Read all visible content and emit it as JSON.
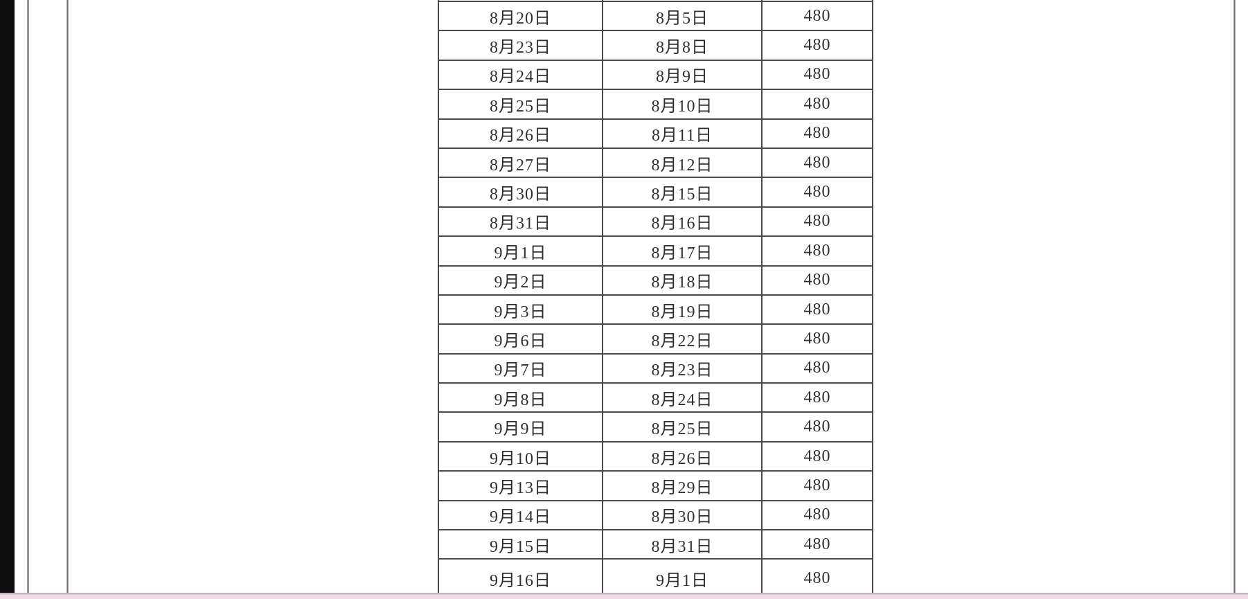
{
  "colors": {
    "page_background": "#ffffff",
    "table_border": "#4a4a4a",
    "table_text": "#2f2f2f",
    "left_bar": "#0e0e0e",
    "page_edge_line": "#6e6e6e",
    "bottom_strip": "#f1dee8",
    "bottom_strip_edge": "#c9aebb"
  },
  "table": {
    "rows": [
      [
        "8月20日",
        "8月5日",
        "480"
      ],
      [
        "8月23日",
        "8月8日",
        "480"
      ],
      [
        "8月24日",
        "8月9日",
        "480"
      ],
      [
        "8月25日",
        "8月10日",
        "480"
      ],
      [
        "8月26日",
        "8月11日",
        "480"
      ],
      [
        "8月27日",
        "8月12日",
        "480"
      ],
      [
        "8月30日",
        "8月15日",
        "480"
      ],
      [
        "8月31日",
        "8月16日",
        "480"
      ],
      [
        "9月1日",
        "8月17日",
        "480"
      ],
      [
        "9月2日",
        "8月18日",
        "480"
      ],
      [
        "9月3日",
        "8月19日",
        "480"
      ],
      [
        "9月6日",
        "8月22日",
        "480"
      ],
      [
        "9月7日",
        "8月23日",
        "480"
      ],
      [
        "9月8日",
        "8月24日",
        "480"
      ],
      [
        "9月9日",
        "8月25日",
        "480"
      ],
      [
        "9月10日",
        "8月26日",
        "480"
      ],
      [
        "9月13日",
        "8月29日",
        "480"
      ],
      [
        "9月14日",
        "8月30日",
        "480"
      ],
      [
        "9月15日",
        "8月31日",
        "480"
      ],
      [
        "9月16日",
        "9月1日",
        "480"
      ]
    ]
  }
}
